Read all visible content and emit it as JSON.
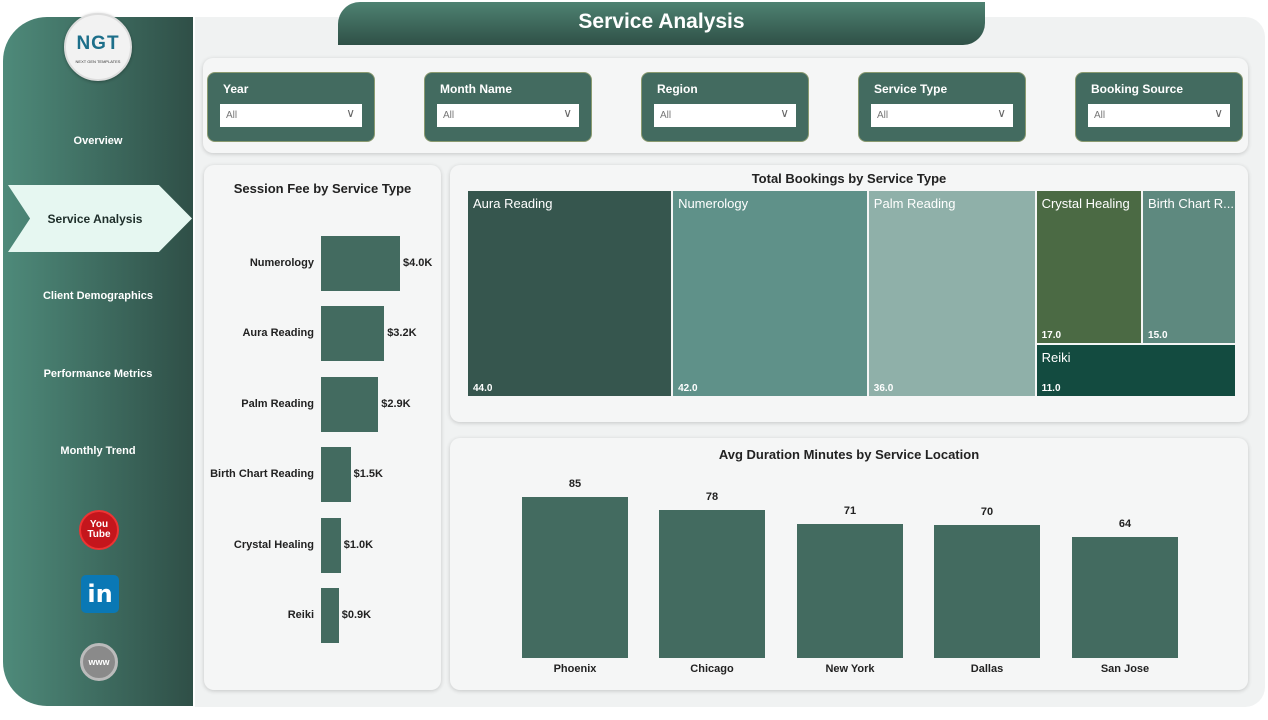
{
  "header": {
    "title": "Service Analysis"
  },
  "logo": {
    "text": "NGT",
    "subtitle": "NEXT GEN TEMPLATES"
  },
  "sidebar": {
    "items": [
      {
        "label": "Overview",
        "selected": false
      },
      {
        "label": "Service Analysis",
        "selected": true
      },
      {
        "label": "Client Demographics",
        "selected": false
      },
      {
        "label": "Performance Metrics",
        "selected": false
      },
      {
        "label": "Monthly Trend",
        "selected": false
      }
    ],
    "social": [
      {
        "icon": "youtube-icon",
        "label": "You Tube"
      },
      {
        "icon": "linkedin-icon",
        "label": "in"
      },
      {
        "icon": "globe-icon",
        "label": "www"
      }
    ]
  },
  "filters": [
    {
      "label": "Year",
      "value": "All"
    },
    {
      "label": "Month Name",
      "value": "All"
    },
    {
      "label": "Region",
      "value": "All"
    },
    {
      "label": "Service Type",
      "value": "All"
    },
    {
      "label": "Booking Source",
      "value": "All"
    }
  ],
  "colors": {
    "accent": "#436b60",
    "sidebar_dark": "#2f4f47",
    "selected": "#e6f7f1"
  },
  "chart_data": [
    {
      "type": "bar",
      "orientation": "horizontal",
      "title": "Session Fee by Service Type",
      "categories": [
        "Numerology",
        "Aura Reading",
        "Palm Reading",
        "Birth Chart Reading",
        "Crystal Healing",
        "Reiki"
      ],
      "values": [
        4.0,
        3.2,
        2.9,
        1.5,
        1.0,
        0.9
      ],
      "labels": [
        "$4.0K",
        "$3.2K",
        "$2.9K",
        "$1.5K",
        "$1.0K",
        "$0.9K"
      ]
    },
    {
      "type": "treemap",
      "title": "Total Bookings by Service Type",
      "categories": [
        "Aura Reading",
        "Numerology",
        "Palm Reading",
        "Crystal Healing",
        "Birth Chart R...",
        "Reiki"
      ],
      "values": [
        44,
        42,
        36,
        17,
        15,
        11
      ],
      "labels": [
        "44.0",
        "42.0",
        "36.0",
        "17.0",
        "15.0",
        "11.0"
      ],
      "colors": [
        "#36564e",
        "#5f9189",
        "#8fb0a9",
        "#4b6a44",
        "#5e897f",
        "#134b40"
      ]
    },
    {
      "type": "bar",
      "title": "Avg Duration Minutes by Service Location",
      "categories": [
        "Phoenix",
        "Chicago",
        "New York",
        "Dallas",
        "San Jose"
      ],
      "values": [
        85,
        78,
        71,
        70,
        64
      ],
      "color": "#436b60"
    }
  ]
}
